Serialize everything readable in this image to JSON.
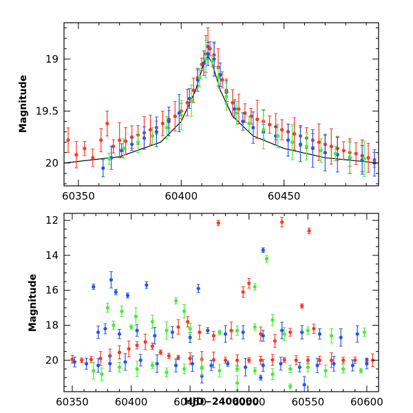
{
  "chart_data": [
    {
      "type": "scatter",
      "title": "",
      "xlabel": "",
      "ylabel": "Magnitude",
      "xlim": [
        60343,
        60496
      ],
      "ylim": [
        20.22,
        18.65
      ],
      "y_inverted": true,
      "xticks": [
        60350,
        60400,
        60450
      ],
      "yticks": [
        19,
        19.5,
        20
      ],
      "series": [
        {
          "color": "#ff3322",
          "points": [
            [
              60345,
              19.78
            ],
            [
              60349,
              19.92
            ],
            [
              60353,
              19.86
            ],
            [
              60357,
              19.95
            ],
            [
              60361,
              19.78
            ],
            [
              60364,
              19.62
            ],
            [
              60367,
              19.84
            ],
            [
              60370,
              19.78
            ],
            [
              60373,
              19.79
            ],
            [
              60376,
              19.75
            ],
            [
              60379,
              19.73
            ],
            [
              60382,
              19.71
            ],
            [
              60385,
              19.68
            ],
            [
              60388,
              19.66
            ],
            [
              60391,
              19.62
            ],
            [
              60394,
              19.58
            ],
            [
              60397,
              19.55
            ],
            [
              60400,
              19.5
            ],
            [
              60403,
              19.42
            ],
            [
              60406,
              19.3
            ],
            [
              60408,
              19.18
            ],
            [
              60410,
              19.05
            ],
            [
              60412,
              18.95
            ],
            [
              60413,
              18.88
            ],
            [
              60414,
              18.9
            ],
            [
              60416,
              18.96
            ],
            [
              60418,
              19.08
            ],
            [
              60420,
              19.2
            ],
            [
              60422,
              19.3
            ],
            [
              60425,
              19.42
            ],
            [
              60428,
              19.48
            ],
            [
              60431,
              19.52
            ],
            [
              60434,
              19.55
            ],
            [
              60437,
              19.58
            ],
            [
              60440,
              19.6
            ],
            [
              60443,
              19.63
            ],
            [
              60446,
              19.65
            ],
            [
              60449,
              19.68
            ],
            [
              60452,
              19.7
            ],
            [
              60455,
              19.72
            ],
            [
              60458,
              19.74
            ],
            [
              60461,
              19.76
            ],
            [
              60464,
              19.78
            ],
            [
              60467,
              19.8
            ],
            [
              60470,
              19.82
            ],
            [
              60473,
              19.84
            ],
            [
              60476,
              19.86
            ],
            [
              60479,
              19.88
            ],
            [
              60482,
              19.9
            ],
            [
              60485,
              19.91
            ],
            [
              60488,
              19.93
            ],
            [
              60491,
              19.95
            ],
            [
              60494,
              19.97
            ]
          ]
        },
        {
          "color": "#2255ee",
          "points": [
            [
              60362,
              20.05
            ],
            [
              60366,
              19.95
            ],
            [
              60371,
              19.88
            ],
            [
              60376,
              19.82
            ],
            [
              60382,
              19.76
            ],
            [
              60388,
              19.7
            ],
            [
              60394,
              19.6
            ],
            [
              60399,
              19.52
            ],
            [
              60404,
              19.38
            ],
            [
              60408,
              19.2
            ],
            [
              60411,
              19.04
            ],
            [
              60413,
              18.95
            ],
            [
              60416,
              19.0
            ],
            [
              60419,
              19.15
            ],
            [
              60422,
              19.32
            ],
            [
              60426,
              19.48
            ],
            [
              60430,
              19.6
            ],
            [
              60435,
              19.66
            ],
            [
              60440,
              19.7
            ],
            [
              60446,
              19.74
            ],
            [
              60452,
              19.78
            ],
            [
              60458,
              19.82
            ],
            [
              60464,
              19.86
            ],
            [
              60470,
              19.9
            ],
            [
              60476,
              19.92
            ],
            [
              60482,
              19.95
            ],
            [
              60488,
              19.97
            ],
            [
              60494,
              20.0
            ]
          ]
        },
        {
          "color": "#44ee33",
          "points": [
            [
              60365,
              19.96
            ],
            [
              60372,
              19.86
            ],
            [
              60379,
              19.8
            ],
            [
              60386,
              19.74
            ],
            [
              60393,
              19.66
            ],
            [
              60400,
              19.54
            ],
            [
              60405,
              19.4
            ],
            [
              60409,
              19.18
            ],
            [
              60412,
              19.0
            ],
            [
              60415,
              19.02
            ],
            [
              60418,
              19.18
            ],
            [
              60422,
              19.36
            ],
            [
              60427,
              19.52
            ],
            [
              60433,
              19.62
            ],
            [
              60440,
              19.68
            ],
            [
              60447,
              19.74
            ],
            [
              60454,
              19.8
            ],
            [
              60461,
              19.84
            ],
            [
              60468,
              19.88
            ],
            [
              60475,
              19.91
            ],
            [
              60482,
              19.94
            ],
            [
              60489,
              19.96
            ]
          ]
        }
      ],
      "model_curve": [
        [
          60343,
          20.0
        ],
        [
          60370,
          19.94
        ],
        [
          60390,
          19.8
        ],
        [
          60400,
          19.6
        ],
        [
          60407,
          19.3
        ],
        [
          60411,
          19.04
        ],
        [
          60413,
          18.97
        ],
        [
          60415,
          19.04
        ],
        [
          60419,
          19.3
        ],
        [
          60425,
          19.55
        ],
        [
          60435,
          19.74
        ],
        [
          60450,
          19.86
        ],
        [
          60470,
          19.95
        ],
        [
          60496,
          20.0
        ]
      ]
    },
    {
      "type": "scatter",
      "title": "",
      "xlabel": "HJD−2400000",
      "ylabel": "Magnitude",
      "xlim": [
        60343,
        60610
      ],
      "ylim": [
        21.8,
        11.6
      ],
      "y_inverted": true,
      "xticks": [
        60350,
        60400,
        60450,
        60500,
        60550,
        60600
      ],
      "yticks": [
        12,
        14,
        16,
        18,
        20
      ],
      "series": [
        {
          "color": "#ff3322",
          "points": [
            [
              60350,
              19.95
            ],
            [
              60358,
              20.0
            ],
            [
              60366,
              19.96
            ],
            [
              60374,
              19.9
            ],
            [
              60382,
              19.75
            ],
            [
              60390,
              19.55
            ],
            [
              60398,
              19.35
            ],
            [
              60405,
              19.15
            ],
            [
              60412,
              18.95
            ],
            [
              60418,
              19.2
            ],
            [
              60425,
              19.55
            ],
            [
              60432,
              19.75
            ],
            [
              60440,
              19.85
            ],
            [
              60450,
              19.9
            ],
            [
              60460,
              19.95
            ],
            [
              60470,
              19.98
            ],
            [
              60480,
              20.0
            ],
            [
              60490,
              20.0
            ],
            [
              60500,
              20.0
            ],
            [
              60510,
              20.0
            ],
            [
              60520,
              19.98
            ],
            [
              60530,
              19.98
            ],
            [
              60540,
              20.0
            ],
            [
              60550,
              20.0
            ],
            [
              60560,
              20.0
            ],
            [
              60570,
              20.0
            ],
            [
              60580,
              20.0
            ],
            [
              60590,
              20.0
            ],
            [
              60600,
              20.0
            ],
            [
              60605,
              20.0
            ],
            [
              60474,
              12.15
            ],
            [
              60528,
              12.1
            ],
            [
              60551,
              12.6
            ],
            [
              60495,
              16.1
            ],
            [
              60500,
              15.6
            ],
            [
              60545,
              16.9
            ],
            [
              60440,
              18.1
            ],
            [
              60448,
              17.8
            ],
            [
              60458,
              18.4
            ],
            [
              60470,
              18.6
            ],
            [
              60485,
              18.3
            ],
            [
              60510,
              18.5
            ],
            [
              60522,
              18.9
            ],
            [
              60535,
              18.4
            ],
            [
              60555,
              18.2
            ]
          ]
        },
        {
          "color": "#2255ee",
          "points": [
            [
              60368,
              15.8
            ],
            [
              60383,
              15.4
            ],
            [
              60387,
              16.1
            ],
            [
              60397,
              16.3
            ],
            [
              60413,
              15.7
            ],
            [
              60457,
              15.9
            ],
            [
              60512,
              13.7
            ],
            [
              60372,
              18.4
            ],
            [
              60378,
              18.2
            ],
            [
              60390,
              18.5
            ],
            [
              60405,
              18.3
            ],
            [
              60420,
              18.6
            ],
            [
              60435,
              18.4
            ],
            [
              60450,
              18.7
            ],
            [
              60465,
              18.3
            ],
            [
              60480,
              18.5
            ],
            [
              60495,
              18.4
            ],
            [
              60512,
              18.6
            ],
            [
              60528,
              18.3
            ],
            [
              60545,
              18.4
            ],
            [
              60560,
              18.5
            ],
            [
              60578,
              18.7
            ],
            [
              60592,
              18.5
            ],
            [
              60352,
              20.1
            ],
            [
              60362,
              20.2
            ],
            [
              60372,
              20.3
            ],
            [
              60382,
              20.2
            ],
            [
              60395,
              20.1
            ],
            [
              60408,
              20.0
            ],
            [
              60422,
              20.2
            ],
            [
              60438,
              20.3
            ],
            [
              60452,
              20.2
            ],
            [
              60468,
              20.3
            ],
            [
              60482,
              20.2
            ],
            [
              60497,
              20.4
            ],
            [
              60512,
              20.3
            ],
            [
              60527,
              20.2
            ],
            [
              60543,
              20.4
            ],
            [
              60558,
              20.3
            ],
            [
              60572,
              20.2
            ],
            [
              60588,
              20.3
            ],
            [
              60600,
              20.2
            ],
            [
              60547,
              21.4
            ],
            [
              60460,
              20.9
            ],
            [
              60510,
              21.0
            ]
          ]
        },
        {
          "color": "#44ee33",
          "points": [
            [
              60380,
              17.0
            ],
            [
              60392,
              17.2
            ],
            [
              60404,
              17.5
            ],
            [
              60418,
              17.8
            ],
            [
              60438,
              16.6
            ],
            [
              60445,
              17.2
            ],
            [
              60505,
              15.8
            ],
            [
              60515,
              14.2
            ],
            [
              60520,
              17.7
            ],
            [
              60385,
              18.0
            ],
            [
              60400,
              18.1
            ],
            [
              60430,
              18.3
            ],
            [
              60450,
              18.2
            ],
            [
              60475,
              18.4
            ],
            [
              60490,
              18.3
            ],
            [
              60505,
              18.1
            ],
            [
              60530,
              18.5
            ],
            [
              60550,
              18.3
            ],
            [
              60570,
              18.6
            ],
            [
              60598,
              18.4
            ],
            [
              60368,
              20.6
            ],
            [
              60375,
              20.8
            ],
            [
              60390,
              20.4
            ],
            [
              60405,
              20.5
            ],
            [
              60418,
              20.3
            ],
            [
              60430,
              20.7
            ],
            [
              60445,
              20.5
            ],
            [
              60460,
              20.4
            ],
            [
              60475,
              20.6
            ],
            [
              60490,
              20.5
            ],
            [
              60505,
              20.6
            ],
            [
              60520,
              20.8
            ],
            [
              60535,
              20.5
            ],
            [
              60550,
              20.4
            ],
            [
              60565,
              20.6
            ],
            [
              60580,
              20.5
            ],
            [
              60595,
              20.6
            ],
            [
              60535,
              21.5
            ],
            [
              60490,
              21.3
            ]
          ]
        }
      ]
    }
  ]
}
